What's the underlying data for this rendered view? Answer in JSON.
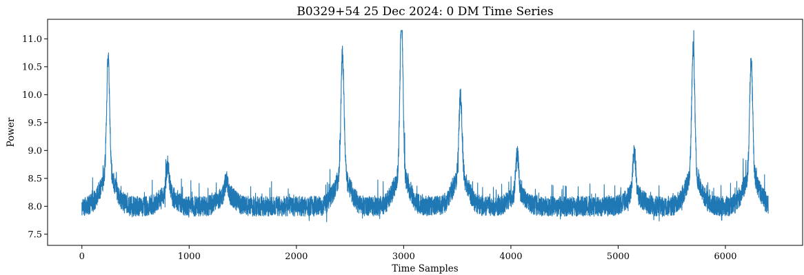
{
  "chart_data": {
    "type": "line",
    "title": "B0329+54 25 Dec 2024: 0 DM Time Series",
    "xlabel": "Time Samples",
    "ylabel": "Power",
    "xlim": [
      -320,
      6720
    ],
    "ylim": [
      7.3,
      11.35
    ],
    "xticks": [
      0,
      1000,
      2000,
      3000,
      4000,
      5000,
      6000
    ],
    "xtick_labels": [
      "0",
      "1000",
      "2000",
      "3000",
      "4000",
      "5000",
      "6000"
    ],
    "yticks": [
      7.5,
      8.0,
      8.5,
      9.0,
      9.5,
      10.0,
      10.5,
      11.0
    ],
    "ytick_labels": [
      "7.5",
      "8.0",
      "8.5",
      "9.0",
      "9.5",
      "10.0",
      "10.5",
      "11.0"
    ],
    "grid": false,
    "color": "#1f77b4",
    "n_samples": 6400,
    "baseline": 8.0,
    "noise_amplitude": 0.18,
    "pulses": [
      {
        "center": 245,
        "peak": 10.37
      },
      {
        "center": 800,
        "peak": 8.78
      },
      {
        "center": 1350,
        "peak": 8.5
      },
      {
        "center": 2430,
        "peak": 10.47
      },
      {
        "center": 2980,
        "peak": 11.15
      },
      {
        "center": 3530,
        "peak": 9.7
      },
      {
        "center": 4060,
        "peak": 8.95
      },
      {
        "center": 5150,
        "peak": 9.03
      },
      {
        "center": 5700,
        "peak": 10.53
      },
      {
        "center": 6240,
        "peak": 10.32
      }
    ],
    "series": [
      {
        "x_start": 0,
        "x_end": 6400,
        "y_min": 7.47,
        "y_max": 11.15
      }
    ]
  }
}
